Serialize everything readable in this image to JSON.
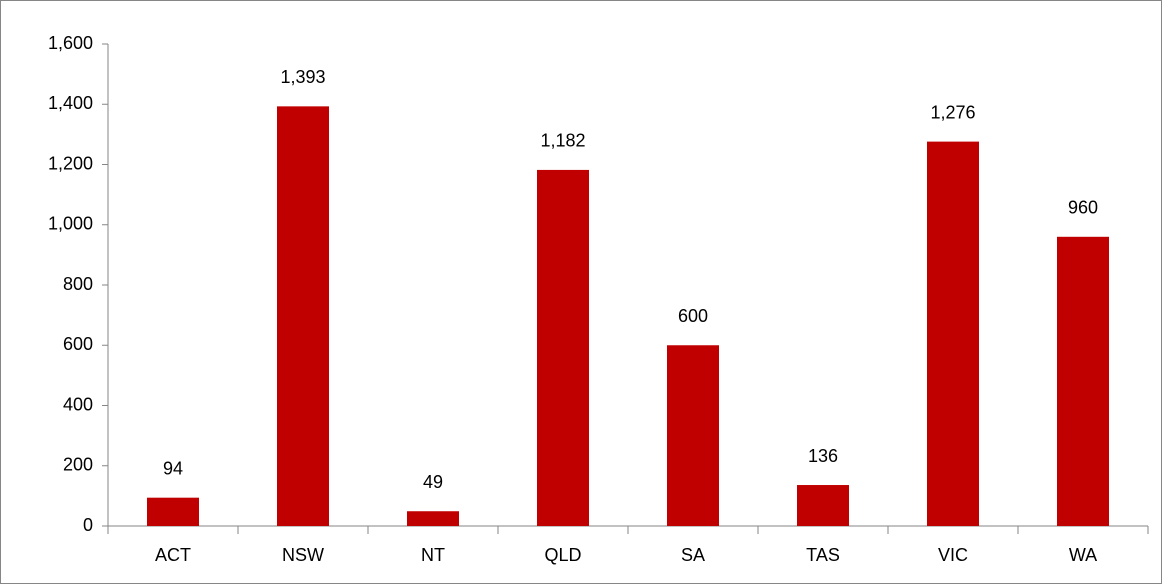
{
  "chart_data": {
    "type": "bar",
    "categories": [
      "ACT",
      "NSW",
      "NT",
      "QLD",
      "SA",
      "TAS",
      "VIC",
      "WA"
    ],
    "values": [
      94,
      1393,
      49,
      1182,
      600,
      136,
      1276,
      960
    ],
    "value_labels": [
      "94",
      "1,393",
      "49",
      "1,182",
      "600",
      "136",
      "1,276",
      "960"
    ],
    "color": "#c00000",
    "ylim": [
      0,
      1600
    ],
    "yticks": [
      0,
      200,
      400,
      600,
      800,
      {
        "value": 1000,
        "label": "1,000"
      },
      {
        "value": 1200,
        "label": "1,200"
      },
      {
        "value": 1400,
        "label": "1,400"
      },
      {
        "value": 1600,
        "label": "1,600"
      }
    ],
    "grid": false
  }
}
